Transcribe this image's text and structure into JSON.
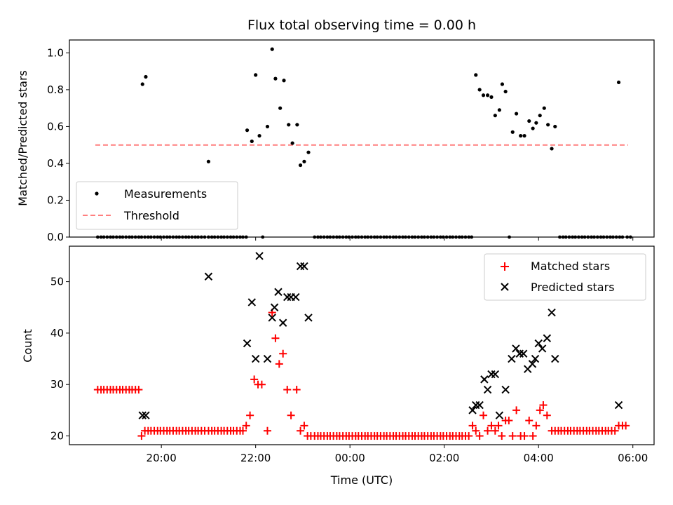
{
  "title": "Flux total observing time = 0.00 h",
  "colors": {
    "threshold": "#ff7f7f",
    "matched": "#ff0000",
    "predicted": "#000000",
    "measurement": "#000000"
  },
  "chart_data": [
    {
      "type": "scatter",
      "ylabel": "Matched/Predicted stars",
      "ylim": [
        0,
        1.07
      ],
      "yticks": [
        0.0,
        0.2,
        0.4,
        0.6,
        0.8,
        1.0
      ],
      "xlim_hours": [
        -1.95,
        10.45
      ],
      "legend": {
        "placement": "lower-left",
        "measurements_label": "Measurements",
        "threshold_label": "Threshold"
      },
      "threshold": {
        "value": 0.5,
        "x_start": -1.4,
        "x_end": 9.9
      },
      "zero_x": [
        -1.35,
        -1.28,
        -1.22,
        -1.15,
        -1.08,
        -1.02,
        -0.95,
        -0.88,
        -0.82,
        -0.75,
        -0.68,
        -0.62,
        -0.55,
        -0.48,
        -0.42,
        -0.35,
        -0.28,
        -0.22,
        -0.15,
        -0.08,
        -0.02,
        0.05,
        0.12,
        0.18,
        0.25,
        0.32,
        0.38,
        0.45,
        0.52,
        0.58,
        0.65,
        0.72,
        0.78,
        0.85,
        0.92,
        1.0,
        1.07,
        1.13,
        1.2,
        1.27,
        1.33,
        1.4,
        1.47,
        1.53,
        1.6,
        1.67,
        1.73,
        1.8,
        2.15,
        3.25,
        3.32,
        3.38,
        3.45,
        3.52,
        3.58,
        3.65,
        3.72,
        3.78,
        3.85,
        3.92,
        3.98,
        4.05,
        4.12,
        4.18,
        4.25,
        4.32,
        4.38,
        4.45,
        4.52,
        4.58,
        4.65,
        4.72,
        4.78,
        4.85,
        4.92,
        4.98,
        5.05,
        5.12,
        5.18,
        5.25,
        5.32,
        5.38,
        5.45,
        5.52,
        5.58,
        5.65,
        5.72,
        5.78,
        5.85,
        5.92,
        5.98,
        6.05,
        6.12,
        6.18,
        6.25,
        6.32,
        6.38,
        6.45,
        6.52,
        6.58,
        7.38,
        8.45,
        8.52,
        8.58,
        8.65,
        8.72,
        8.78,
        8.85,
        8.92,
        8.98,
        9.05,
        9.12,
        9.18,
        9.25,
        9.32,
        9.38,
        9.45,
        9.52,
        9.58,
        9.65,
        9.72,
        9.78,
        9.88,
        9.95
      ],
      "points": [
        [
          -0.4,
          0.83
        ],
        [
          -0.33,
          0.87
        ],
        [
          1.0,
          0.41
        ],
        [
          1.82,
          0.58
        ],
        [
          1.92,
          0.52
        ],
        [
          2.0,
          0.88
        ],
        [
          2.08,
          0.55
        ],
        [
          2.25,
          0.6
        ],
        [
          2.35,
          1.02
        ],
        [
          2.42,
          0.86
        ],
        [
          2.52,
          0.7
        ],
        [
          2.6,
          0.85
        ],
        [
          2.7,
          0.61
        ],
        [
          2.78,
          0.51
        ],
        [
          2.88,
          0.61
        ],
        [
          2.95,
          0.39
        ],
        [
          3.03,
          0.41
        ],
        [
          3.12,
          0.46
        ],
        [
          6.67,
          0.88
        ],
        [
          6.75,
          0.8
        ],
        [
          6.83,
          0.77
        ],
        [
          6.92,
          0.77
        ],
        [
          7.0,
          0.76
        ],
        [
          7.08,
          0.66
        ],
        [
          7.17,
          0.69
        ],
        [
          7.23,
          0.83
        ],
        [
          7.3,
          0.79
        ],
        [
          7.45,
          0.57
        ],
        [
          7.53,
          0.67
        ],
        [
          7.62,
          0.55
        ],
        [
          7.7,
          0.55
        ],
        [
          7.8,
          0.63
        ],
        [
          7.88,
          0.59
        ],
        [
          7.95,
          0.62
        ],
        [
          8.03,
          0.66
        ],
        [
          8.12,
          0.7
        ],
        [
          8.2,
          0.61
        ],
        [
          8.28,
          0.48
        ],
        [
          8.35,
          0.6
        ],
        [
          9.7,
          0.84
        ]
      ]
    },
    {
      "type": "scatter",
      "xlabel": "Time (UTC)",
      "ylabel": "Count",
      "ylim": [
        18.3,
        56.9
      ],
      "yticks": [
        20,
        30,
        40,
        50
      ],
      "xlim_hours": [
        -1.95,
        10.45
      ],
      "xticks": [
        {
          "hour": 0,
          "label": "20:00"
        },
        {
          "hour": 2,
          "label": "22:00"
        },
        {
          "hour": 4,
          "label": "00:00"
        },
        {
          "hour": 6,
          "label": "02:00"
        },
        {
          "hour": 8,
          "label": "04:00"
        },
        {
          "hour": 10,
          "label": "06:00"
        }
      ],
      "legend": {
        "placement": "top-right"
      },
      "series": [
        {
          "name": "Matched stars",
          "marker": "plus",
          "points": [
            [
              -1.35,
              29
            ],
            [
              -1.28,
              29
            ],
            [
              -1.22,
              29
            ],
            [
              -1.15,
              29
            ],
            [
              -1.08,
              29
            ],
            [
              -1.02,
              29
            ],
            [
              -0.95,
              29
            ],
            [
              -0.88,
              29
            ],
            [
              -0.82,
              29
            ],
            [
              -0.75,
              29
            ],
            [
              -0.68,
              29
            ],
            [
              -0.62,
              29
            ],
            [
              -0.55,
              29
            ],
            [
              -0.48,
              29
            ],
            [
              -0.42,
              20
            ],
            [
              -0.35,
              21
            ],
            [
              -0.28,
              21
            ],
            [
              -0.22,
              21
            ],
            [
              -0.15,
              21
            ],
            [
              -0.08,
              21
            ],
            [
              -0.02,
              21
            ],
            [
              0.05,
              21
            ],
            [
              0.12,
              21
            ],
            [
              0.18,
              21
            ],
            [
              0.25,
              21
            ],
            [
              0.32,
              21
            ],
            [
              0.38,
              21
            ],
            [
              0.45,
              21
            ],
            [
              0.52,
              21
            ],
            [
              0.58,
              21
            ],
            [
              0.65,
              21
            ],
            [
              0.72,
              21
            ],
            [
              0.78,
              21
            ],
            [
              0.85,
              21
            ],
            [
              0.92,
              21
            ],
            [
              1.0,
              21
            ],
            [
              1.07,
              21
            ],
            [
              1.13,
              21
            ],
            [
              1.2,
              21
            ],
            [
              1.27,
              21
            ],
            [
              1.33,
              21
            ],
            [
              1.4,
              21
            ],
            [
              1.47,
              21
            ],
            [
              1.53,
              21
            ],
            [
              1.6,
              21
            ],
            [
              1.67,
              21
            ],
            [
              1.73,
              21
            ],
            [
              1.8,
              22
            ],
            [
              1.88,
              24
            ],
            [
              1.97,
              31
            ],
            [
              2.05,
              30
            ],
            [
              2.13,
              30
            ],
            [
              2.25,
              21
            ],
            [
              2.35,
              44
            ],
            [
              2.42,
              39
            ],
            [
              2.5,
              34
            ],
            [
              2.58,
              36
            ],
            [
              2.67,
              29
            ],
            [
              2.75,
              24
            ],
            [
              2.87,
              29
            ],
            [
              2.95,
              21
            ],
            [
              3.03,
              22
            ],
            [
              3.1,
              20
            ],
            [
              3.17,
              20
            ],
            [
              3.25,
              20
            ],
            [
              3.32,
              20
            ],
            [
              3.38,
              20
            ],
            [
              3.45,
              20
            ],
            [
              3.52,
              20
            ],
            [
              3.58,
              20
            ],
            [
              3.65,
              20
            ],
            [
              3.72,
              20
            ],
            [
              3.78,
              20
            ],
            [
              3.85,
              20
            ],
            [
              3.92,
              20
            ],
            [
              3.98,
              20
            ],
            [
              4.05,
              20
            ],
            [
              4.12,
              20
            ],
            [
              4.18,
              20
            ],
            [
              4.25,
              20
            ],
            [
              4.32,
              20
            ],
            [
              4.38,
              20
            ],
            [
              4.45,
              20
            ],
            [
              4.52,
              20
            ],
            [
              4.58,
              20
            ],
            [
              4.65,
              20
            ],
            [
              4.72,
              20
            ],
            [
              4.78,
              20
            ],
            [
              4.85,
              20
            ],
            [
              4.92,
              20
            ],
            [
              4.98,
              20
            ],
            [
              5.05,
              20
            ],
            [
              5.12,
              20
            ],
            [
              5.18,
              20
            ],
            [
              5.25,
              20
            ],
            [
              5.32,
              20
            ],
            [
              5.38,
              20
            ],
            [
              5.45,
              20
            ],
            [
              5.52,
              20
            ],
            [
              5.58,
              20
            ],
            [
              5.65,
              20
            ],
            [
              5.72,
              20
            ],
            [
              5.78,
              20
            ],
            [
              5.85,
              20
            ],
            [
              5.92,
              20
            ],
            [
              5.98,
              20
            ],
            [
              6.05,
              20
            ],
            [
              6.12,
              20
            ],
            [
              6.18,
              20
            ],
            [
              6.25,
              20
            ],
            [
              6.32,
              20
            ],
            [
              6.38,
              20
            ],
            [
              6.45,
              20
            ],
            [
              6.52,
              20
            ],
            [
              6.6,
              22
            ],
            [
              6.67,
              21
            ],
            [
              6.75,
              20
            ],
            [
              6.83,
              24
            ],
            [
              6.92,
              21
            ],
            [
              7.0,
              22
            ],
            [
              7.08,
              21
            ],
            [
              7.15,
              22
            ],
            [
              7.22,
              20
            ],
            [
              7.3,
              23
            ],
            [
              7.37,
              23
            ],
            [
              7.45,
              20
            ],
            [
              7.53,
              25
            ],
            [
              7.62,
              20
            ],
            [
              7.7,
              20
            ],
            [
              7.8,
              23
            ],
            [
              7.88,
              20
            ],
            [
              7.95,
              22
            ],
            [
              8.03,
              25
            ],
            [
              8.1,
              26
            ],
            [
              8.18,
              24
            ],
            [
              8.28,
              21
            ],
            [
              8.35,
              21
            ],
            [
              8.42,
              21
            ],
            [
              8.48,
              21
            ],
            [
              8.55,
              21
            ],
            [
              8.62,
              21
            ],
            [
              8.68,
              21
            ],
            [
              8.75,
              21
            ],
            [
              8.82,
              21
            ],
            [
              8.88,
              21
            ],
            [
              8.95,
              21
            ],
            [
              9.02,
              21
            ],
            [
              9.08,
              21
            ],
            [
              9.15,
              21
            ],
            [
              9.22,
              21
            ],
            [
              9.28,
              21
            ],
            [
              9.35,
              21
            ],
            [
              9.42,
              21
            ],
            [
              9.48,
              21
            ],
            [
              9.55,
              21
            ],
            [
              9.62,
              21
            ],
            [
              9.7,
              22
            ],
            [
              9.78,
              22
            ],
            [
              9.85,
              22
            ]
          ]
        },
        {
          "name": "Predicted stars",
          "marker": "x",
          "points": [
            [
              -0.4,
              24
            ],
            [
              -0.33,
              24
            ],
            [
              1.0,
              51
            ],
            [
              1.82,
              38
            ],
            [
              1.92,
              46
            ],
            [
              2.0,
              35
            ],
            [
              2.08,
              55
            ],
            [
              2.25,
              35
            ],
            [
              2.35,
              43
            ],
            [
              2.4,
              45
            ],
            [
              2.48,
              48
            ],
            [
              2.58,
              42
            ],
            [
              2.67,
              47
            ],
            [
              2.75,
              47
            ],
            [
              2.85,
              47
            ],
            [
              2.95,
              53
            ],
            [
              3.03,
              53
            ],
            [
              3.12,
              43
            ],
            [
              6.6,
              25
            ],
            [
              6.67,
              26
            ],
            [
              6.75,
              26
            ],
            [
              6.85,
              31
            ],
            [
              6.92,
              29
            ],
            [
              7.0,
              32
            ],
            [
              7.08,
              32
            ],
            [
              7.17,
              24
            ],
            [
              7.3,
              29
            ],
            [
              7.43,
              35
            ],
            [
              7.52,
              37
            ],
            [
              7.6,
              36
            ],
            [
              7.68,
              36
            ],
            [
              7.77,
              33
            ],
            [
              7.87,
              34
            ],
            [
              7.93,
              35
            ],
            [
              8.0,
              38
            ],
            [
              8.08,
              37
            ],
            [
              8.18,
              39
            ],
            [
              8.28,
              44
            ],
            [
              8.35,
              35
            ],
            [
              9.7,
              26
            ]
          ]
        }
      ]
    }
  ]
}
